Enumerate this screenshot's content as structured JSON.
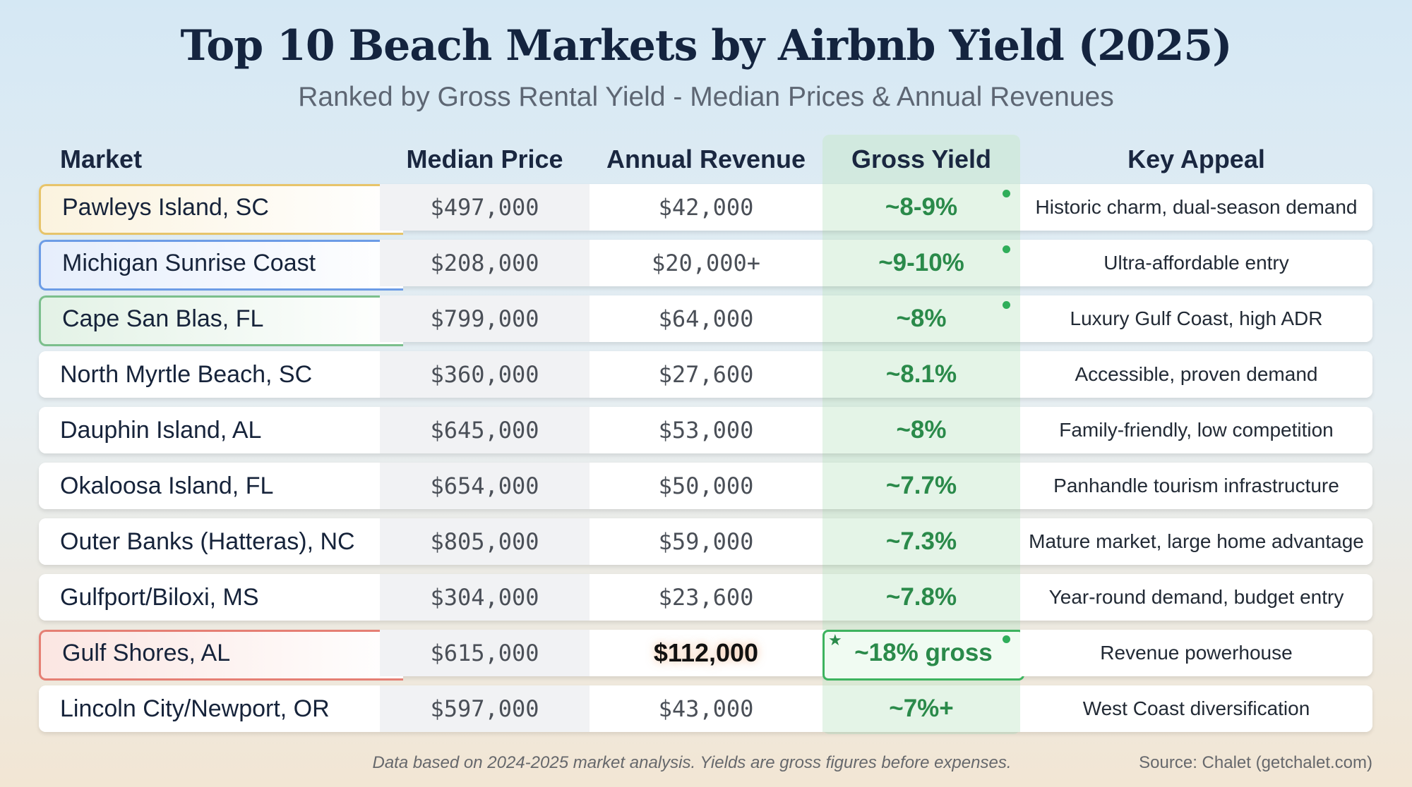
{
  "title": "Top 10 Beach Markets by Airbnb Yield (2025)",
  "subtitle": "Ranked by Gross Rental Yield - Median Prices & Annual Revenues",
  "table": {
    "columns": [
      "Market",
      "Median Price",
      "Annual Revenue",
      "Gross Yield",
      "Key Appeal"
    ],
    "rows": [
      [
        "Pawleys Island, SC",
        "$497,000",
        "$42,000",
        "~8-9%",
        "Historic charm, dual-season demand"
      ],
      [
        "Michigan Sunrise Coast",
        "$208,000",
        "$20,000+",
        "~9-10%",
        "Ultra-affordable entry"
      ],
      [
        "Cape San Blas, FL",
        "$799,000",
        "$64,000",
        "~8%",
        "Luxury Gulf Coast, high ADR"
      ],
      [
        "North Myrtle Beach, SC",
        "$360,000",
        "$27,600",
        "~8.1%",
        "Accessible, proven demand"
      ],
      [
        "Dauphin Island, AL",
        "$645,000",
        "$53,000",
        "~8%",
        "Family-friendly, low competition"
      ],
      [
        "Okaloosa Island, FL",
        "$654,000",
        "$50,000",
        "~7.7%",
        "Panhandle tourism infrastructure"
      ],
      [
        "Outer Banks (Hatteras), NC",
        "$805,000",
        "$59,000",
        "~7.3%",
        "Mature market, large home advantage"
      ],
      [
        "Gulfport/Biloxi, MS",
        "$304,000",
        "$23,600",
        "~7.8%",
        "Year-round demand, budget entry"
      ],
      [
        "Gulf Shores, AL",
        "$615,000",
        "$112,000",
        "~18% gross",
        "Revenue powerhouse"
      ],
      [
        "Lincoln City/Newport, OR",
        "$597,000",
        "$43,000",
        "~7%+",
        "West Coast diversification"
      ]
    ]
  },
  "footer": {
    "note": "Data based on 2024-2025 market analysis. Yields are gross figures before expenses.",
    "source": "Source: Chalet (getchalet.com)"
  }
}
